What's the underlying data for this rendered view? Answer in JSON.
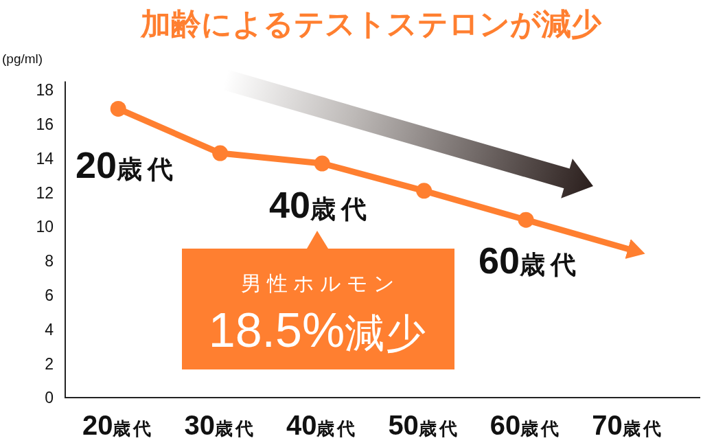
{
  "chart_data": {
    "type": "line",
    "title": "加齢によるテストステロンが減少",
    "ylabel": "(pg/ml)",
    "categories": [
      "20歳代",
      "30歳代",
      "40歳代",
      "50歳代",
      "60歳代",
      "70歳代"
    ],
    "series": [
      {
        "color": "#ff7f30",
        "values": [
          16.9,
          14.3,
          13.7,
          12.1,
          10.4,
          8.7
        ]
      }
    ],
    "ylim": [
      0,
      18.5
    ],
    "yticks": [
      0,
      2,
      4,
      6,
      8,
      10,
      12,
      14,
      16,
      18
    ],
    "grid": false,
    "marker": "circle",
    "line_style": "solid",
    "annotations": [
      "20歳代",
      "40歳代",
      "60歳代",
      "男性ホルモン",
      "18.5%減少"
    ]
  }
}
